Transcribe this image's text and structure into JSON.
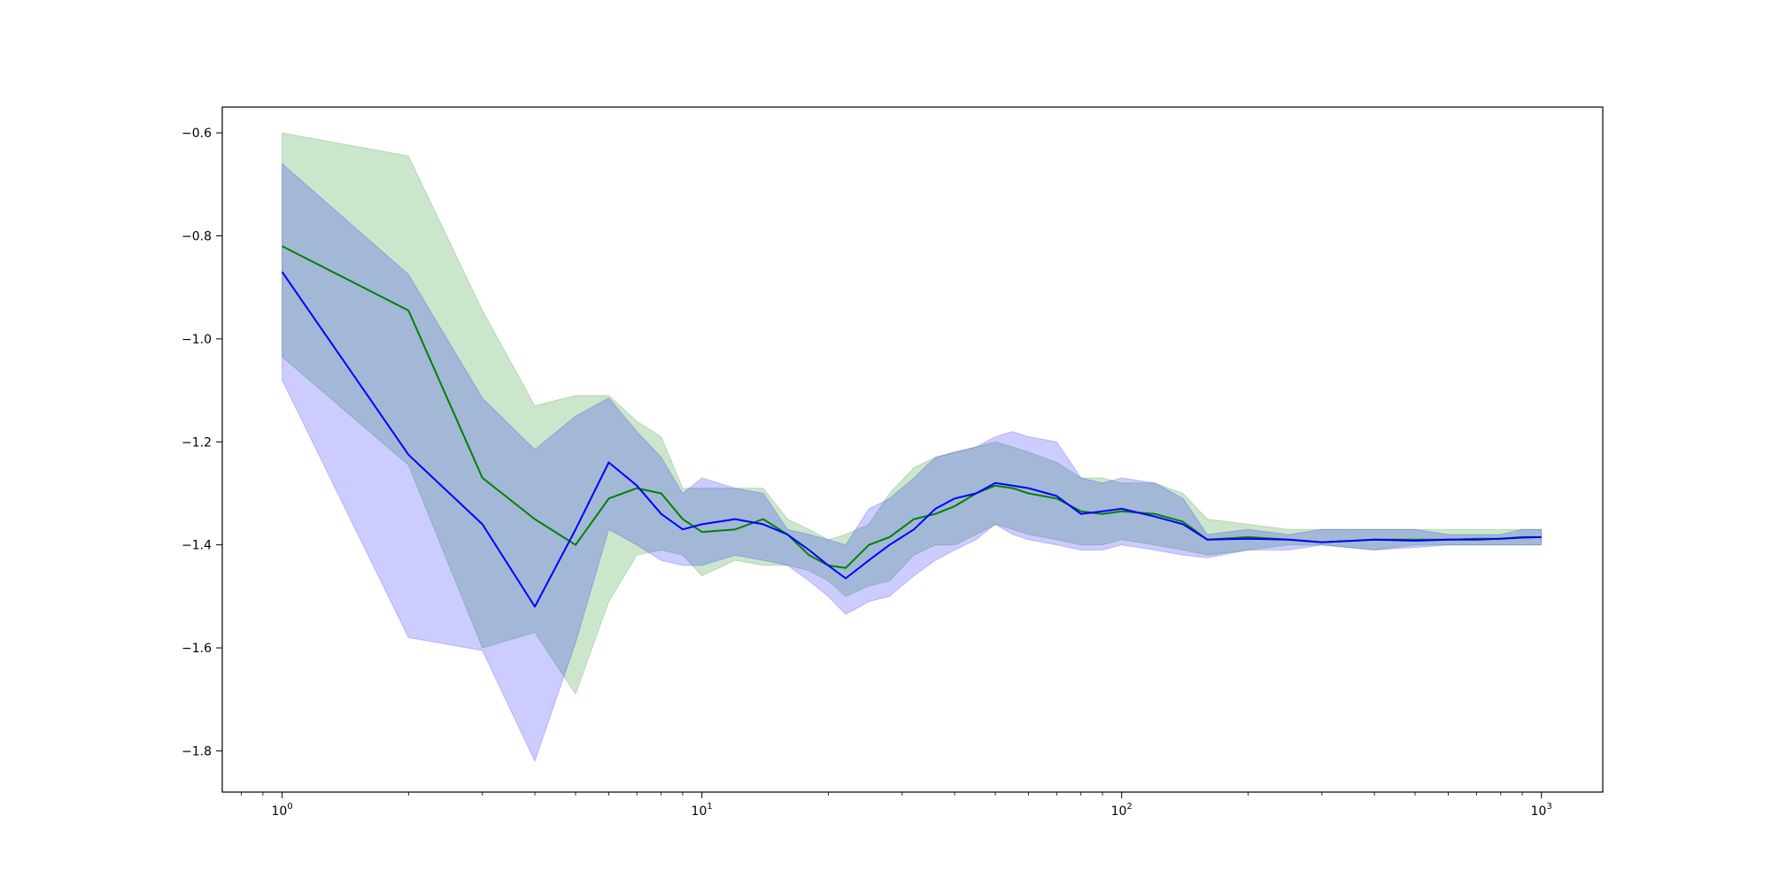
{
  "chart_data": {
    "type": "line",
    "title": "",
    "xlabel": "",
    "ylabel": "",
    "x_scale": "log",
    "xlim": [
      0.72,
      1400
    ],
    "ylim": [
      -1.88,
      -0.55
    ],
    "x_ticks": [
      {
        "base": "10",
        "exp": "0",
        "value": 1
      },
      {
        "base": "10",
        "exp": "1",
        "value": 10
      },
      {
        "base": "10",
        "exp": "2",
        "value": 100
      },
      {
        "base": "10",
        "exp": "3",
        "value": 1000
      }
    ],
    "y_ticks": [
      -0.6,
      -0.8,
      -1.0,
      -1.2,
      -1.4,
      -1.6,
      -1.8
    ],
    "y_tick_labels": [
      "−0.6",
      "−0.8",
      "−1.0",
      "−1.2",
      "−1.4",
      "−1.6",
      "−1.8"
    ],
    "grid": false,
    "legend": "none",
    "series": [
      {
        "color": "#008000",
        "band_color": "#008000",
        "x": [
          1,
          2,
          3,
          4,
          5,
          6,
          7,
          8,
          9,
          10,
          12,
          14,
          16,
          18,
          20,
          22,
          25,
          28,
          32,
          36,
          40,
          45,
          50,
          55,
          60,
          70,
          80,
          90,
          100,
          120,
          140,
          160,
          200,
          250,
          300,
          400,
          500,
          600,
          700,
          800,
          900,
          1000
        ],
        "y": [
          -0.82,
          -0.945,
          -1.27,
          -1.35,
          -1.4,
          -1.31,
          -1.29,
          -1.3,
          -1.35,
          -1.375,
          -1.37,
          -1.35,
          -1.38,
          -1.42,
          -1.44,
          -1.445,
          -1.4,
          -1.385,
          -1.35,
          -1.34,
          -1.325,
          -1.3,
          -1.285,
          -1.29,
          -1.3,
          -1.31,
          -1.335,
          -1.34,
          -1.335,
          -1.34,
          -1.355,
          -1.39,
          -1.385,
          -1.39,
          -1.395,
          -1.39,
          -1.39,
          -1.39,
          -1.388,
          -1.388,
          -1.385,
          -1.385
        ],
        "upper": [
          -0.6,
          -0.645,
          -0.945,
          -1.13,
          -1.11,
          -1.11,
          -1.16,
          -1.19,
          -1.29,
          -1.29,
          -1.29,
          -1.29,
          -1.35,
          -1.37,
          -1.39,
          -1.38,
          -1.36,
          -1.3,
          -1.25,
          -1.23,
          -1.22,
          -1.21,
          -1.2,
          -1.21,
          -1.22,
          -1.24,
          -1.27,
          -1.27,
          -1.28,
          -1.28,
          -1.3,
          -1.35,
          -1.36,
          -1.37,
          -1.37,
          -1.37,
          -1.37,
          -1.37,
          -1.37,
          -1.37,
          -1.37,
          -1.37
        ],
        "lower": [
          -1.035,
          -1.245,
          -1.6,
          -1.57,
          -1.69,
          -1.51,
          -1.42,
          -1.41,
          -1.42,
          -1.46,
          -1.43,
          -1.44,
          -1.44,
          -1.45,
          -1.47,
          -1.5,
          -1.48,
          -1.47,
          -1.42,
          -1.4,
          -1.4,
          -1.38,
          -1.36,
          -1.37,
          -1.38,
          -1.39,
          -1.4,
          -1.4,
          -1.39,
          -1.4,
          -1.41,
          -1.42,
          -1.41,
          -1.4,
          -1.4,
          -1.41,
          -1.4,
          -1.4,
          -1.4,
          -1.4,
          -1.4,
          -1.4
        ]
      },
      {
        "color": "#0000ff",
        "band_color": "#0000ff",
        "x": [
          1,
          2,
          3,
          4,
          5,
          6,
          7,
          8,
          9,
          10,
          12,
          14,
          16,
          18,
          20,
          22,
          25,
          28,
          32,
          36,
          40,
          45,
          50,
          55,
          60,
          70,
          80,
          90,
          100,
          120,
          140,
          160,
          200,
          250,
          300,
          400,
          500,
          600,
          700,
          800,
          900,
          1000
        ],
        "y": [
          -0.87,
          -1.225,
          -1.36,
          -1.52,
          -1.37,
          -1.24,
          -1.285,
          -1.34,
          -1.37,
          -1.36,
          -1.35,
          -1.36,
          -1.38,
          -1.41,
          -1.44,
          -1.465,
          -1.43,
          -1.4,
          -1.37,
          -1.33,
          -1.31,
          -1.3,
          -1.28,
          -1.285,
          -1.29,
          -1.305,
          -1.34,
          -1.335,
          -1.33,
          -1.345,
          -1.36,
          -1.39,
          -1.388,
          -1.39,
          -1.395,
          -1.39,
          -1.392,
          -1.39,
          -1.39,
          -1.388,
          -1.386,
          -1.385
        ],
        "upper": [
          -0.66,
          -0.875,
          -1.115,
          -1.215,
          -1.15,
          -1.115,
          -1.18,
          -1.23,
          -1.3,
          -1.27,
          -1.29,
          -1.3,
          -1.37,
          -1.38,
          -1.39,
          -1.4,
          -1.33,
          -1.31,
          -1.27,
          -1.23,
          -1.22,
          -1.21,
          -1.19,
          -1.18,
          -1.19,
          -1.2,
          -1.27,
          -1.28,
          -1.27,
          -1.28,
          -1.31,
          -1.38,
          -1.37,
          -1.38,
          -1.37,
          -1.37,
          -1.37,
          -1.38,
          -1.38,
          -1.38,
          -1.37,
          -1.37
        ],
        "lower": [
          -1.08,
          -1.58,
          -1.605,
          -1.82,
          -1.59,
          -1.37,
          -1.4,
          -1.43,
          -1.44,
          -1.44,
          -1.42,
          -1.43,
          -1.44,
          -1.47,
          -1.5,
          -1.535,
          -1.51,
          -1.5,
          -1.46,
          -1.43,
          -1.41,
          -1.39,
          -1.36,
          -1.38,
          -1.39,
          -1.4,
          -1.41,
          -1.41,
          -1.4,
          -1.41,
          -1.42,
          -1.425,
          -1.41,
          -1.41,
          -1.4,
          -1.41,
          -1.405,
          -1.4,
          -1.4,
          -1.4,
          -1.4,
          -1.4
        ]
      }
    ]
  }
}
